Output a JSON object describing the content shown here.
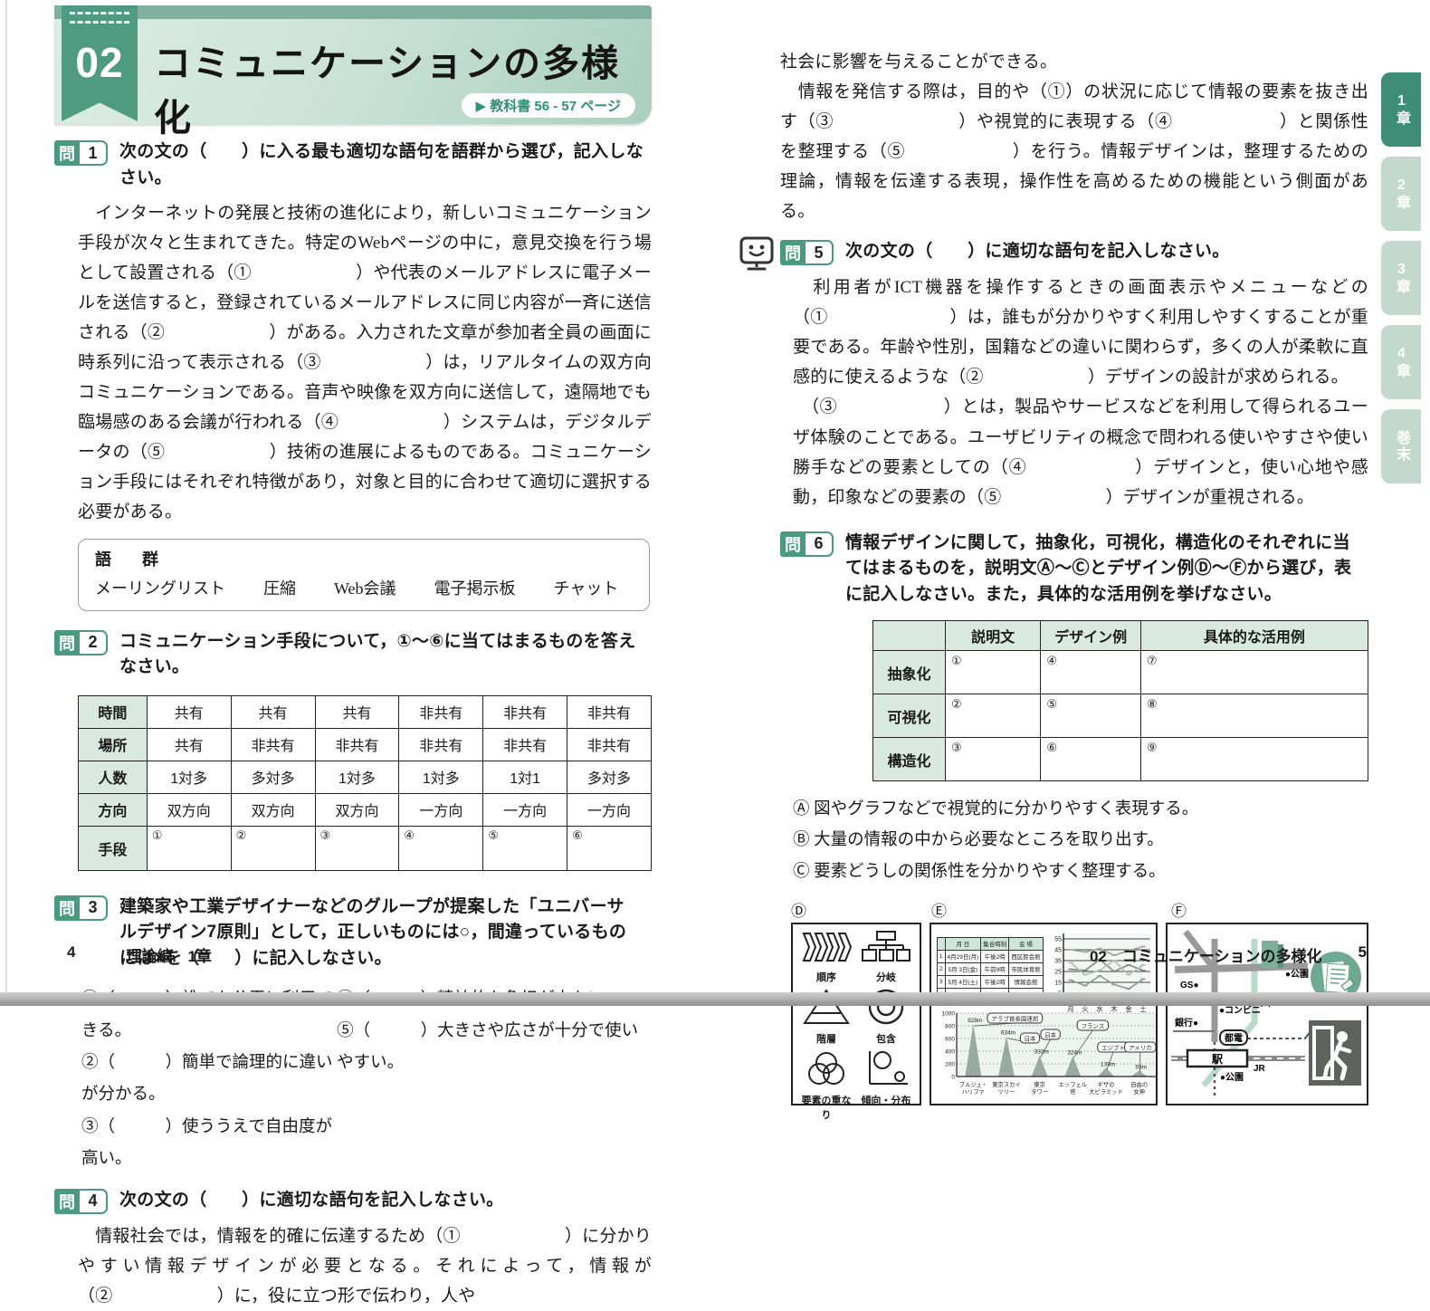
{
  "header": {
    "number": "02",
    "title": "コミュニケーションの多様化",
    "textbook_ref": "▶ 教科書 56 - 57 ページ"
  },
  "side_tabs": [
    {
      "label": "1章"
    },
    {
      "label": "2章"
    },
    {
      "label": "3章"
    },
    {
      "label": "4章"
    },
    {
      "label": "巻末"
    }
  ],
  "footer_left": {
    "page": "4",
    "label": "理論編　1章"
  },
  "footer_right": {
    "label": "02　コミュニケーションの多様化",
    "page": "5"
  },
  "q_label": "問",
  "q1": {
    "num": "1",
    "title": "次の文の（　　）に入る最も適切な語句を語群から選び，記入しなさい。",
    "body": "　インターネットの発展と技術の進化により，新しいコミュニケーション手段が次々と生まれてきた。特定のWebページの中に，意見交換を行う場として設置される（①　　　　　　）や代表のメールアドレスに電子メールを送信すると，登録されているメールアドレスに同じ内容が一斉に送信される（②　　　　　　）がある。入力された文章が参加者全員の画面に時系列に沿って表示される（③　　　　　　）は，リアルタイムの双方向コミュニケーションである。音声や映像を双方向に送信して，遠隔地でも臨場感のある会議が行われる（④　　　　　　）システムは，デジタルデータの（⑤　　　　　　）技術の進展によるものである。コミュニケーション手段にはそれぞれ特徴があり，対象と目的に合わせて適切に選択する必要がある。",
    "wordbank": {
      "title": "語　群",
      "items": [
        "メーリングリスト",
        "圧縮",
        "Web会議",
        "電子掲示板",
        "チャット"
      ]
    }
  },
  "q2": {
    "num": "2",
    "title": "コミュニケーション手段について，①～⑥に当てはまるものを答えなさい。",
    "row_headers": [
      "時間",
      "場所",
      "人数",
      "方向",
      "手段"
    ],
    "rows": [
      [
        "共有",
        "共有",
        "共有",
        "非共有",
        "非共有",
        "非共有"
      ],
      [
        "共有",
        "非共有",
        "非共有",
        "非共有",
        "非共有",
        "非共有"
      ],
      [
        "1対多",
        "多対多",
        "1対多",
        "1対多",
        "1対1",
        "多対多"
      ],
      [
        "双方向",
        "双方向",
        "双方向",
        "一方向",
        "一方向",
        "一方向"
      ],
      [
        "①",
        "②",
        "③",
        "④",
        "⑤",
        "⑥"
      ]
    ]
  },
  "q3": {
    "num": "3",
    "title": "建築家や工業デザイナーなどのグループが提案した「ユニバーサルデザイン7原則」として，正しいものには○，間違っているものには×を（　　）に記入しなさい。",
    "left_items": [
      "①（　　　）誰でも公平に利用できる。",
      "②（　　　）簡単で論理的に違いが分かる。",
      "③（　　　）使ううえで自由度が高い。"
    ],
    "right_items": [
      "④（　　　）精神的な負担が少ない。",
      "⑤（　　　）大きさや広さが十分で使いやすい。"
    ]
  },
  "q4": {
    "num": "4",
    "title": "次の文の（　　）に適切な語句を記入しなさい。",
    "body": "　情報社会では，情報を的確に伝達するため（①　　　　　　）に分かりやすい情報デザインが必要となる。それによって，情報が（②　　　　　　）に，役に立つ形で伝わり，人や",
    "body_cont": "社会に影響を与えることができる。\n　情報を発信する際は，目的や（①）の状況に応じて情報の要素を抜き出す（③　　　　　　　）や視覚的に表現する（④　　　　　　）と関係性を整理する（⑤　　　　　　）を行う。情報デザインは，整理するための理論，情報を伝達する表現，操作性を高めるための機能という側面がある。"
  },
  "q5": {
    "num": "5",
    "title": "次の文の（　　）に適切な語句を記入しなさい。",
    "body": "　利用者がICT機器を操作するときの画面表示やメニューなどの（①　　　　　　　）は，誰もが分かりやすく利用しやすくすることが重要である。年齢や性別，国籍などの違いに関わらず，多くの人が柔軟に直感的に使えるような（②　　　　　　）デザインの設計が求められる。\n　（③　　　　　　）とは，製品やサービスなどを利用して得られるユーザ体験のことである。ユーザビリティの概念で問われる使いやすさや使い勝手などの要素としての（④　　　　　　）デザインと，使い心地や感動，印象などの要素の（⑤　　　　　　）デザインが重視される。"
  },
  "q6": {
    "num": "6",
    "title": "情報デザインに関して，抽象化，可視化，構造化のそれぞれに当てはまるものを，説明文Ⓐ～Ⓒとデザイン例Ⓓ～Ⓕから選び，表に記入しなさい。また，具体的な活用例を挙げなさい。",
    "col_headers": [
      "説明文",
      "デザイン例",
      "具体的な活用例"
    ],
    "row_headers": [
      "抽象化",
      "可視化",
      "構造化"
    ],
    "rows": [
      [
        "①",
        "④",
        "⑦"
      ],
      [
        "②",
        "⑤",
        "⑧"
      ],
      [
        "③",
        "⑥",
        "⑨"
      ]
    ],
    "abc_items": [
      "Ⓐ 図やグラフなどで視覚的に分かりやすく表現する。",
      "Ⓑ 大量の情報の中から必要なところを取り出す。",
      "Ⓒ 要素どうしの関係性を分かりやすく整理する。"
    ]
  },
  "boxes": {
    "labels": [
      "Ⓓ",
      "Ⓔ",
      "Ⓕ"
    ],
    "d": {
      "diagram_labels": [
        "順序",
        "分岐",
        "階層",
        "包含",
        "要素の重なり",
        "傾向・分布"
      ]
    },
    "e": {
      "schedule": {
        "headers": [
          "",
          "月 日",
          "集合時刻",
          "会 場"
        ],
        "rows": [
          [
            "1",
            "4月29日(月)",
            "午後2時",
            "西区民会館"
          ],
          [
            "2",
            "5月 3日(金)",
            "午前9時",
            "市民体育館"
          ],
          [
            "3",
            "5月 4日(土)",
            "午後2時",
            "情報会館"
          ],
          [
            "4",
            "5月 5日(日)",
            "午後2時",
            "市民会館"
          ]
        ]
      },
      "line_chart": {
        "yticks": [
          55,
          45,
          35,
          25,
          15,
          5
        ],
        "x": [
          "月",
          "火",
          "水",
          "木",
          "金",
          "土"
        ],
        "series": [
          [
            45,
            43,
            46,
            40,
            44,
            48
          ],
          [
            27,
            26,
            36,
            25,
            31,
            26
          ],
          [
            33,
            22,
            26,
            35,
            22,
            31
          ],
          [
            17,
            12,
            21,
            13,
            9,
            18
          ]
        ]
      },
      "height_chart": {
        "yticks": [
          0,
          200,
          400,
          600,
          800,
          1000
        ],
        "values": [
          828,
          634,
          333,
          324,
          139,
          93
        ],
        "value_labels": [
          "828m",
          "634m",
          "333m",
          "324m",
          "139m",
          "93m"
        ],
        "countries": [
          "アラブ首長国連邦",
          "日本",
          "日本",
          "フランス",
          "エジプト",
          "アメリカ"
        ],
        "names": [
          [
            "ブルジュ・",
            "ハリファ"
          ],
          [
            "東京スカイ",
            "ツリー"
          ],
          [
            "東京",
            "タワー"
          ],
          [
            "エッフェル",
            "塔"
          ],
          [
            "ギザの",
            "大ピラミッド"
          ],
          [
            "自由の",
            "女神"
          ]
        ]
      }
    },
    "f": {
      "labels": {
        "park_top": "●公園",
        "gs": "GS●",
        "river": "川",
        "conv": "●コンビニ",
        "bank": "銀行●",
        "tram": "都電",
        "station": "駅",
        "jr": "JR",
        "park_bottom": "●公園"
      }
    }
  }
}
